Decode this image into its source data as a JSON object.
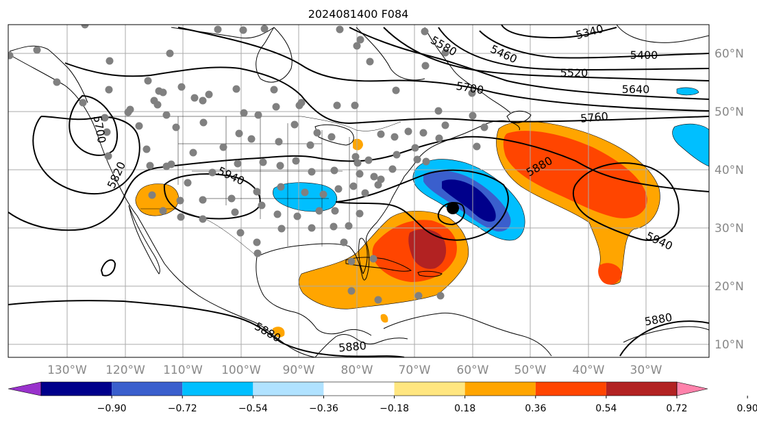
{
  "title": "2024081400 F084",
  "longitude_labels": [
    "130°W",
    "120°W",
    "110°W",
    "100°W",
    "90°W",
    "80°W",
    "70°W",
    "60°W",
    "50°W",
    "40°W",
    "30°W"
  ],
  "latitude_labels": [
    "60°N",
    "50°N",
    "40°N",
    "30°N",
    "20°N",
    "10°N"
  ],
  "contour_labels": [
    "5340",
    "5400",
    "5460",
    "5520",
    "5580",
    "5640",
    "5700",
    "5760",
    "5820",
    "5880",
    "5880",
    "5880",
    "5880",
    "5940",
    "5940",
    "5700"
  ],
  "colorbar": {
    "tick_labels": [
      "−0.90",
      "−0.72",
      "−0.54",
      "−0.36",
      "−0.18",
      "0.18",
      "0.36",
      "0.54",
      "0.72",
      "0.90"
    ],
    "colors": [
      "#9932cc",
      "#00008b",
      "#3a5fcd",
      "#00bfff",
      "#b0e2ff",
      "#ffffff",
      "#ffe680",
      "#ffa500",
      "#ff4500",
      "#b22222",
      "#ff82ab"
    ]
  },
  "colors": {
    "frame": "#000000",
    "grid": "#aaaaaa",
    "coast": "#000000",
    "tick_label": "#888888",
    "station_dot": "#808080",
    "storm_dot": "#000000"
  }
}
